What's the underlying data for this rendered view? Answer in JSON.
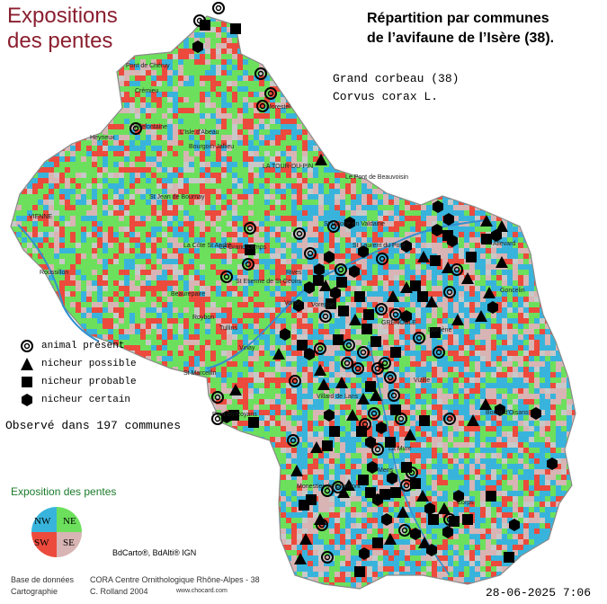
{
  "header": {
    "title_line1": "Expositions",
    "title_line2": "des pentes",
    "repartition_line1": "Répartition par communes",
    "repartition_line2": "de l’avifaune de l’Isère (38)."
  },
  "species": {
    "common_name": "Grand corbeau  (38)",
    "latin_name": "Corvus corax L."
  },
  "legend": {
    "items": [
      {
        "label": "animal présent",
        "symbol": "ring-icon"
      },
      {
        "label": "nicheur possible",
        "symbol": "triangle-icon"
      },
      {
        "label": "nicheur probable",
        "symbol": "square-icon"
      },
      {
        "label": "nicheur certain",
        "symbol": "hexagon-icon"
      }
    ],
    "observed": "Observé dans 197 communes"
  },
  "exposition": {
    "title": "Exposition des pentes",
    "quadrants": [
      "NW",
      "NE",
      "SW",
      "SE"
    ],
    "colors": {
      "NW": "#38b4dc",
      "NE": "#6ce05c",
      "SW": "#ec4a3c",
      "SE": "#d8b4b4"
    }
  },
  "credits": {
    "source": "BdCarto®, BdAlti® IGN",
    "db_label": "Base de données",
    "db_value": "CORA Centre Ornithologique Rhône-Alpes - 38",
    "carto_label": "Cartographie",
    "carto_value": "C. Rolland 2004",
    "website": "www.chocard.com",
    "date": "28-06-2025 7:06"
  },
  "towns": [
    "Pont de Chéruy",
    "Crémieu",
    "Morestel",
    "Heyrieux",
    "Villefontaine",
    "L'Isle d'Abeau",
    "Bourgoin-Jallieu",
    "LA TOUR-DU-PIN",
    "Le Pont de Beauvoisin",
    "VIENNE",
    "St Jean de Bournay",
    "St Geoire en Valdaine",
    "St Laurent du Pont",
    "La Côte St André",
    "Le Grand Lemps",
    "Roussillon",
    "St Etienne de St Geoirs",
    "Rives",
    "Voiron",
    "Beaurepaire",
    "Roybon",
    "Vinay",
    "Tullins",
    "Voreppe",
    "St Marcellin",
    "Pont en Royans",
    "GRENOBLE",
    "Vizille",
    "Villard de Lans",
    "Domène",
    "Goncelin",
    "Allevard",
    "Mens",
    "Monestier de Clermont",
    "Corps",
    "La Mure",
    "Bourg d'Oisans"
  ],
  "map_colors": {
    "green": "#6ce05c",
    "blue": "#38b4dc",
    "red": "#ec4a3c",
    "pink": "#d8b4b4",
    "grey": "#c8c8c8"
  }
}
